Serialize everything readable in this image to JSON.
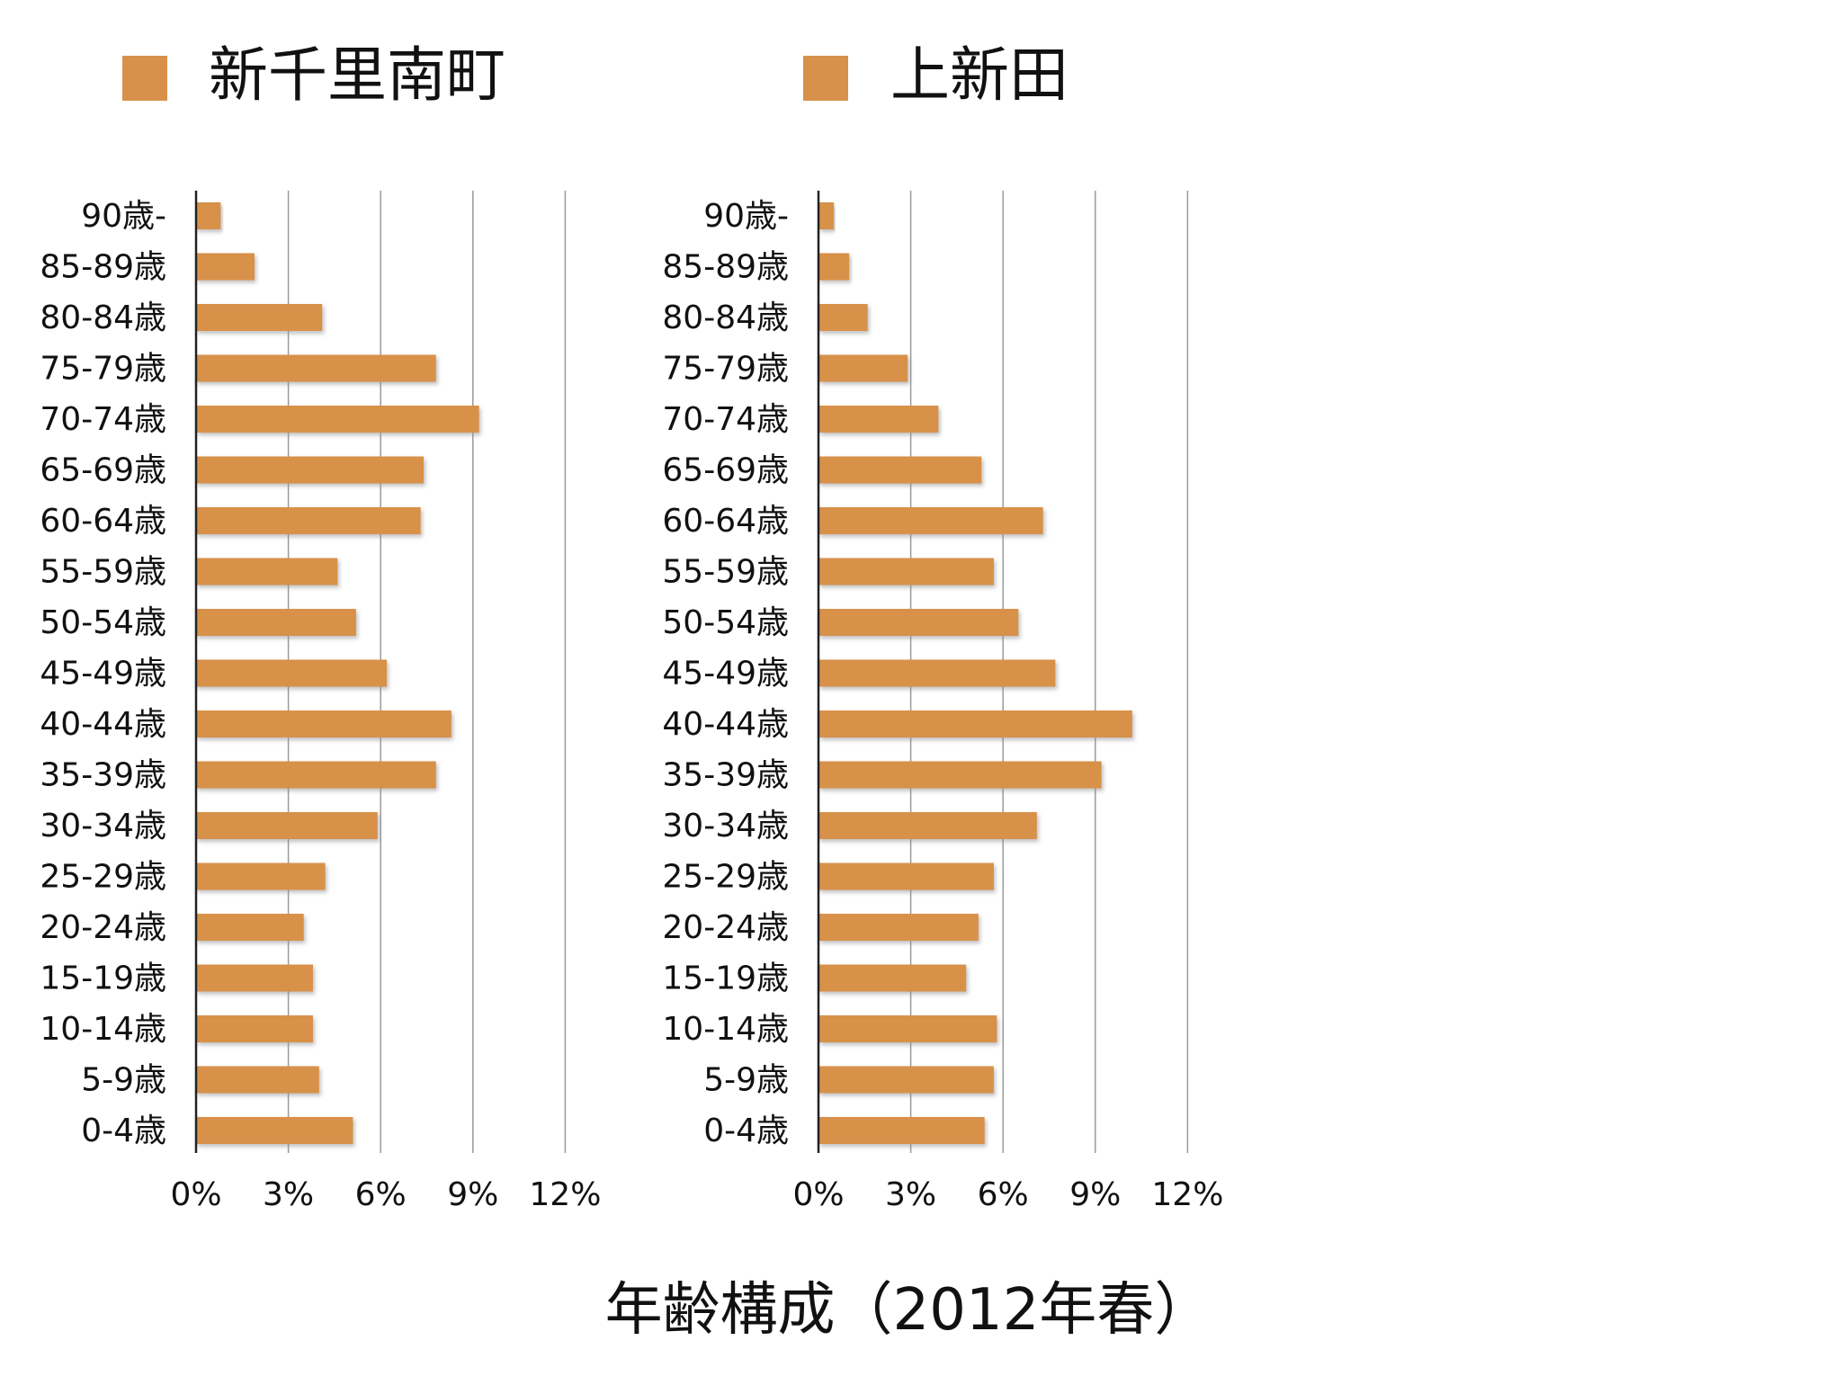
{
  "title": "年齢構成（2012年春）",
  "colors": {
    "bar": "#d8914a",
    "bar_shadow": "#b9b9b9",
    "grid": "#9a9a9a",
    "axis": "#222222",
    "text": "#111111"
  },
  "chart_data": [
    {
      "type": "bar",
      "orientation": "horizontal",
      "legend": "新千里南町",
      "legend_position": "top-left",
      "categories": [
        "90歳-",
        "85-89歳",
        "80-84歳",
        "75-79歳",
        "70-74歳",
        "65-69歳",
        "60-64歳",
        "55-59歳",
        "50-54歳",
        "45-49歳",
        "40-44歳",
        "35-39歳",
        "30-34歳",
        "25-29歳",
        "20-24歳",
        "15-19歳",
        "10-14歳",
        "5-9歳",
        "0-4歳"
      ],
      "series": [
        {
          "name": "新千里南町",
          "values": [
            0.8,
            1.9,
            4.1,
            7.8,
            9.2,
            7.4,
            7.3,
            4.6,
            5.2,
            6.2,
            8.3,
            7.8,
            5.9,
            4.2,
            3.5,
            3.8,
            3.8,
            4.0,
            5.1
          ]
        }
      ],
      "x_ticks": [
        "0%",
        "3%",
        "6%",
        "9%",
        "12%"
      ],
      "xlim": [
        0,
        12
      ],
      "grid": true
    },
    {
      "type": "bar",
      "orientation": "horizontal",
      "legend": "上新田",
      "legend_position": "top-left",
      "categories": [
        "90歳-",
        "85-89歳",
        "80-84歳",
        "75-79歳",
        "70-74歳",
        "65-69歳",
        "60-64歳",
        "55-59歳",
        "50-54歳",
        "45-49歳",
        "40-44歳",
        "35-39歳",
        "30-34歳",
        "25-29歳",
        "20-24歳",
        "15-19歳",
        "10-14歳",
        "5-9歳",
        "0-4歳"
      ],
      "series": [
        {
          "name": "上新田",
          "values": [
            0.5,
            1.0,
            1.6,
            2.9,
            3.9,
            5.3,
            7.3,
            5.7,
            6.5,
            7.7,
            10.2,
            9.2,
            7.1,
            5.7,
            5.2,
            4.8,
            5.8,
            5.7,
            5.4
          ]
        }
      ],
      "x_ticks": [
        "0%",
        "3%",
        "6%",
        "9%",
        "12%"
      ],
      "xlim": [
        0,
        12
      ],
      "grid": true
    }
  ]
}
